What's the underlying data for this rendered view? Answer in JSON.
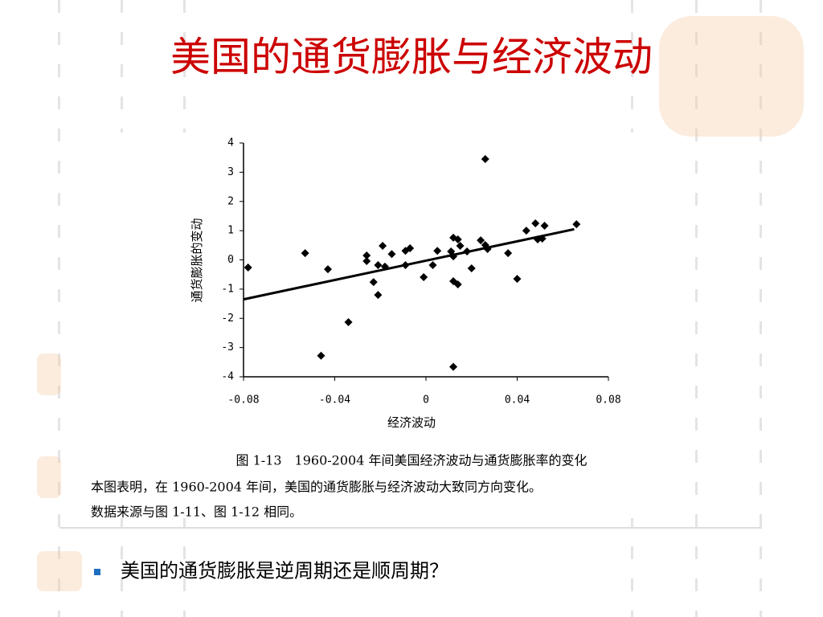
{
  "title": "美国的通货膨胀与经济波动",
  "chart_data": {
    "type": "scatter",
    "x_label": "经济波动",
    "y_label": "通货膨胀的变动",
    "color": "#000000",
    "x": [
      -0.078,
      -0.053,
      -0.043,
      -0.046,
      -0.034,
      -0.026,
      -0.026,
      -0.023,
      -0.021,
      -0.021,
      -0.019,
      -0.018,
      -0.015,
      -0.009,
      -0.009,
      -0.007,
      -0.001,
      0.003,
      0.005,
      0.011,
      0.012,
      0.012,
      0.012,
      0.014,
      0.012,
      0.014,
      0.015,
      0.018,
      0.02,
      0.024,
      0.026,
      0.026,
      0.027,
      0.036,
      0.04,
      0.044,
      0.048,
      0.049,
      0.052,
      0.051,
      0.066
    ],
    "values": [
      -0.26,
      0.23,
      -0.32,
      -3.28,
      -2.13,
      0.15,
      -0.04,
      -0.76,
      -0.18,
      -1.2,
      0.48,
      -0.23,
      0.2,
      -0.18,
      0.31,
      0.4,
      -0.59,
      -0.18,
      0.31,
      0.29,
      0.76,
      0.12,
      -0.73,
      -0.84,
      -3.66,
      0.7,
      0.48,
      0.29,
      -0.29,
      0.67,
      0.51,
      3.45,
      0.37,
      0.23,
      -0.65,
      1.0,
      1.25,
      0.7,
      1.17,
      0.73,
      1.22
    ],
    "trend_line": {
      "x": [
        -0.08,
        0.065
      ],
      "y": [
        -1.35,
        1.05
      ]
    },
    "xlim": [
      -0.08,
      0.08
    ],
    "xticks": [
      -0.08,
      -0.04,
      0,
      0.04,
      0.08
    ],
    "ylim": [
      -4,
      4
    ],
    "yticks": [
      -4,
      -3,
      -2,
      -1,
      0,
      1,
      2,
      3,
      4
    ]
  },
  "caption": [
    "图 1-13　1960-2004 年间美国经济波动与通货膨胀率的变化",
    "本图表明，在 1960-2004 年间，美国的通货膨胀与经济波动大致同方向变化。",
    "数据来源与图 1-11、图 1-12 相同。"
  ],
  "bullet": "美国的通货膨胀是逆周期还是顺周期？"
}
